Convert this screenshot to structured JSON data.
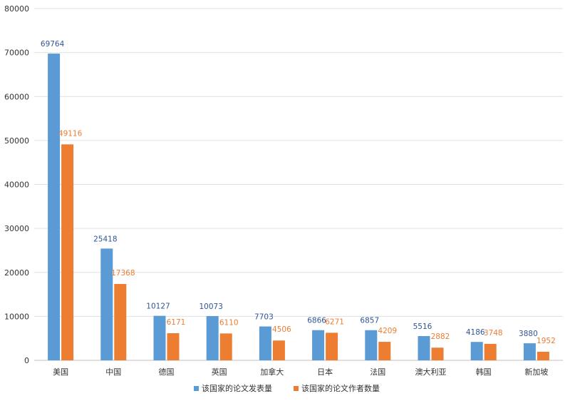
{
  "chart_data": {
    "type": "bar",
    "title": "",
    "xlabel": "",
    "ylabel": "",
    "ylim": [
      0,
      80000
    ],
    "yticks": [
      0,
      10000,
      20000,
      30000,
      40000,
      50000,
      60000,
      70000,
      80000
    ],
    "grid": true,
    "legend_position": "bottom",
    "categories": [
      "美国",
      "中国",
      "德国",
      "英国",
      "加拿大",
      "日本",
      "法国",
      "澳大利亚",
      "韩国",
      "新加坡"
    ],
    "series": [
      {
        "name": "该国家的论文发表量",
        "color": "#5b9bd5",
        "label_color": "#2f5597",
        "values": [
          69764,
          25418,
          10127,
          10073,
          7703,
          6866,
          6857,
          5516,
          4186,
          3880
        ]
      },
      {
        "name": "该国家的论文作者数量",
        "color": "#ed7d31",
        "label_color": "#ed7d31",
        "values": [
          49116,
          17368,
          6171,
          6110,
          4506,
          6271,
          4209,
          2882,
          3748,
          1952
        ]
      }
    ]
  }
}
